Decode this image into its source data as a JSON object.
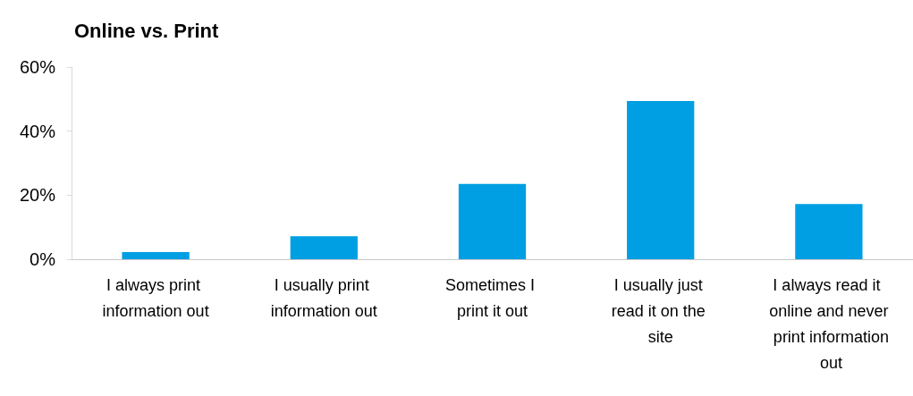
{
  "chart_data": {
    "type": "bar",
    "title": "Online vs. Print",
    "categories": [
      "I always print information out",
      "I usually print information out",
      "Sometimes I print it out",
      "I usually just read it on the site",
      "I always read it online and never print information out"
    ],
    "values": [
      2.2,
      7.2,
      23.5,
      49.4,
      17.2
    ],
    "color": "#009fe3",
    "ylim": [
      0,
      60
    ],
    "yticks": [
      {
        "value": 0,
        "label": "0%"
      },
      {
        "value": 20,
        "label": "20%"
      },
      {
        "value": 40,
        "label": "40%"
      },
      {
        "value": 60,
        "label": "60%"
      }
    ],
    "grid": false
  }
}
